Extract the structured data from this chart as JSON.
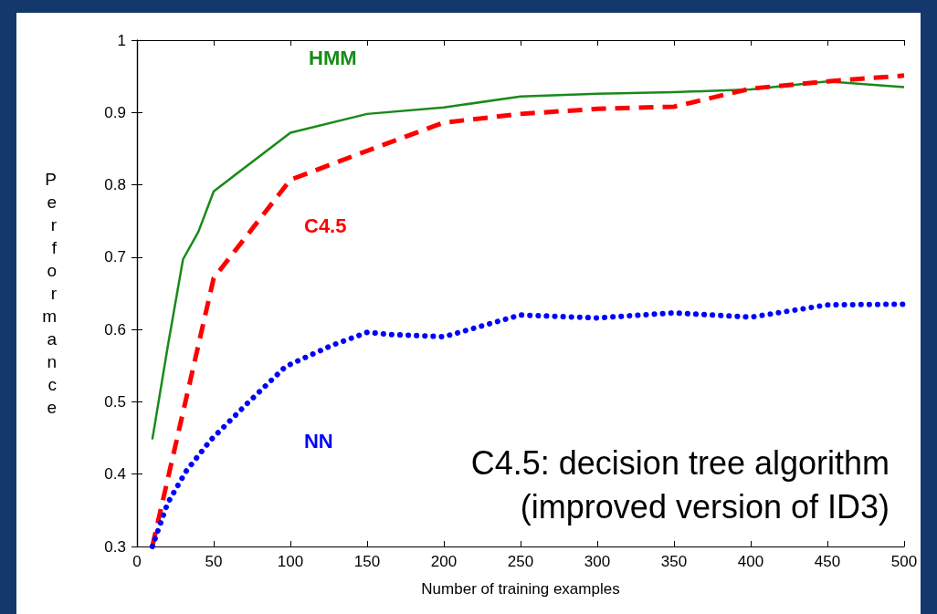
{
  "chart_data": {
    "type": "line",
    "xlabel": "Number of training examples",
    "ylabel": "Performance",
    "xlim": [
      0,
      500
    ],
    "xticks": [
      0,
      50,
      100,
      150,
      200,
      250,
      300,
      350,
      400,
      450,
      500
    ],
    "ylim": [
      0.3,
      1
    ],
    "yticks": [
      0.3,
      0.4,
      0.5,
      0.6,
      0.7,
      0.8,
      0.9,
      1
    ],
    "grid": false,
    "legend": false,
    "marker": "none",
    "series": [
      {
        "name": "HMM",
        "color": "#1a8a1a",
        "line_style": "solid",
        "x": [
          10,
          20,
          30,
          40,
          50,
          100,
          150,
          200,
          250,
          300,
          350,
          400,
          450,
          500
        ],
        "values": [
          0.448,
          0.576,
          0.697,
          0.735,
          0.791,
          0.872,
          0.898,
          0.907,
          0.922,
          0.926,
          0.928,
          0.932,
          0.943,
          0.935
        ]
      },
      {
        "name": "C4.5",
        "color": "#ff0000",
        "line_style": "dashed",
        "x": [
          10,
          50,
          100,
          150,
          200,
          250,
          300,
          350,
          400,
          450,
          500
        ],
        "values": [
          0.3,
          0.671,
          0.807,
          0.847,
          0.886,
          0.898,
          0.905,
          0.908,
          0.933,
          0.943,
          0.951
        ]
      },
      {
        "name": "NN",
        "color": "#0000ff",
        "line_style": "dotted",
        "x": [
          10,
          20,
          32,
          48,
          72,
          97,
          127,
          150,
          166,
          200,
          225,
          250,
          300,
          350,
          400,
          450,
          500
        ],
        "values": [
          0.3,
          0.36,
          0.404,
          0.447,
          0.498,
          0.549,
          0.578,
          0.596,
          0.593,
          0.59,
          0.605,
          0.62,
          0.616,
          0.623,
          0.617,
          0.634,
          0.635
        ]
      }
    ],
    "annotations": [
      "C4.5: decision tree algorithm",
      "(improved version of ID3)"
    ]
  }
}
